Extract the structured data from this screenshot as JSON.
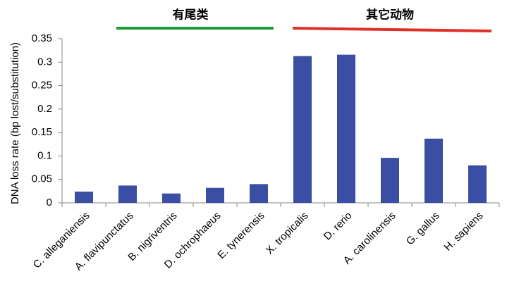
{
  "chart_data": {
    "type": "bar",
    "ylabel": "DNA loss rate (bp lost/substitution)",
    "categories": [
      "C. alleganiensis",
      "A. flavipunctatus",
      "B. nigriventris",
      "D. ochrophaeus",
      "E. tynerensis",
      "X. tropicalis",
      "D. rerio",
      "A. carolinensis",
      "G. gallus",
      "H. sapiens"
    ],
    "values": [
      0.024,
      0.037,
      0.02,
      0.032,
      0.04,
      0.313,
      0.316,
      0.096,
      0.137,
      0.08
    ],
    "color": "#3a4fa3",
    "ylim": [
      0,
      0.35
    ],
    "yticks": [
      0,
      0.05,
      0.1,
      0.15,
      0.2,
      0.25,
      0.3,
      0.35
    ],
    "grid": false,
    "annotations": [
      {
        "text": "有尾类",
        "color": "#1e9a3c"
      },
      {
        "text": "其它动物",
        "color": "#e0302a"
      }
    ]
  }
}
